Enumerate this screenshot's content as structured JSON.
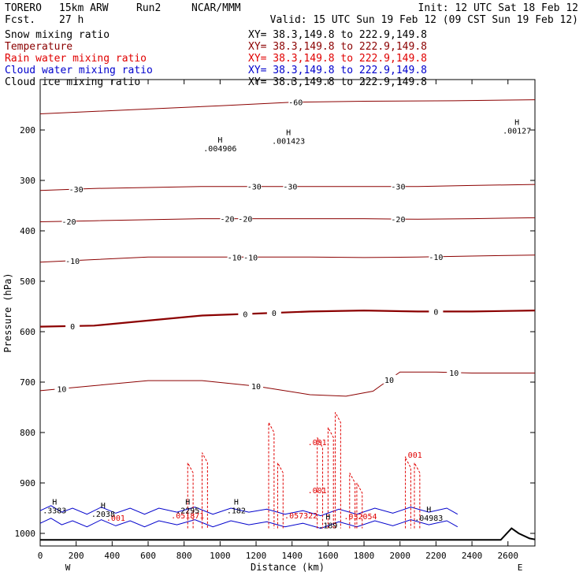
{
  "header": {
    "model": "TORERO",
    "resolution": "15km ARW",
    "run": "Run2",
    "org": "NCAR/MMM",
    "init": "Init: 12 UTC Sat 18 Feb 12",
    "fcst": "Fcst.",
    "fcst_hours": "27 h",
    "valid": "Valid: 15 UTC Sun 19 Feb 12 (09 CST Sun 19 Feb 12)"
  },
  "legend": [
    {
      "name": "Snow mixing ratio",
      "xy": "XY=  38.3,149.8 to 222.9,149.8",
      "color": "#000000"
    },
    {
      "name": "Temperature",
      "xy": "XY=  38.3,149.8 to 222.9,149.8",
      "color": "#8b0000"
    },
    {
      "name": "Rain water mixing ratio",
      "xy": "XY=  38.3,149.8 to 222.9,149.8",
      "color": "#e00000"
    },
    {
      "name": "Cloud water mixing ratio",
      "xy": "XY=  38.3,149.8 to 222.9,149.8",
      "color": "#0000cc"
    },
    {
      "name": "Cloud ice mixing ratio",
      "xy": "XY=  38.3,149.8 to 222.9,149.8",
      "color": "#000000"
    }
  ],
  "colors": {
    "temperature": "#8b0000",
    "rain": "#e00000",
    "cloud_water": "#0000cc",
    "terrain": "#000000"
  },
  "chart_data": {
    "type": "line",
    "xlabel": "Distance (km)",
    "ylabel": "Pressure (hPa)",
    "xlim": [
      0,
      2750
    ],
    "ylim": [
      1025,
      100
    ],
    "x_ticks": [
      0,
      200,
      400,
      600,
      800,
      1000,
      1200,
      1400,
      1600,
      1800,
      2000,
      2200,
      2400,
      2600
    ],
    "y_ticks": [
      200,
      300,
      400,
      500,
      600,
      700,
      800,
      900,
      1000
    ],
    "x_end_labels": {
      "left": "W",
      "right": "E"
    },
    "temperature_contours": [
      {
        "level": 10,
        "points": [
          [
            0,
            717
          ],
          [
            300,
            707
          ],
          [
            600,
            697
          ],
          [
            900,
            697
          ],
          [
            1200,
            708
          ],
          [
            1500,
            725
          ],
          [
            1700,
            728
          ],
          [
            1850,
            718
          ],
          [
            1920,
            700
          ],
          [
            2000,
            680
          ],
          [
            2200,
            680
          ],
          [
            2400,
            682
          ],
          [
            2750,
            682
          ]
        ],
        "labels": [
          {
            "x": 120,
            "text": "10"
          },
          {
            "x": 1200,
            "text": "10"
          },
          {
            "x": 1940,
            "text": "10"
          },
          {
            "x": 2300,
            "text": "10"
          }
        ]
      },
      {
        "level": 0,
        "points": [
          [
            0,
            590
          ],
          [
            300,
            588
          ],
          [
            600,
            578
          ],
          [
            900,
            568
          ],
          [
            1200,
            564
          ],
          [
            1500,
            560
          ],
          [
            1800,
            558
          ],
          [
            2100,
            560
          ],
          [
            2400,
            560
          ],
          [
            2750,
            558
          ]
        ],
        "labels": [
          {
            "x": 180,
            "text": "0"
          },
          {
            "x": 1140,
            "text": "0"
          },
          {
            "x": 1300,
            "text": "0"
          },
          {
            "x": 2200,
            "text": "0"
          }
        ]
      },
      {
        "level": -10,
        "points": [
          [
            0,
            462
          ],
          [
            300,
            457
          ],
          [
            600,
            452
          ],
          [
            900,
            452
          ],
          [
            1200,
            452
          ],
          [
            1500,
            452
          ],
          [
            1800,
            453
          ],
          [
            2100,
            452
          ],
          [
            2400,
            450
          ],
          [
            2750,
            448
          ]
        ],
        "labels": [
          {
            "x": 180,
            "text": "-10"
          },
          {
            "x": 1080,
            "text": "-10"
          },
          {
            "x": 1170,
            "text": "-10"
          },
          {
            "x": 2200,
            "text": "-10"
          }
        ]
      },
      {
        "level": -20,
        "points": [
          [
            0,
            382
          ],
          [
            300,
            380
          ],
          [
            600,
            378
          ],
          [
            900,
            376
          ],
          [
            1200,
            376
          ],
          [
            1500,
            376
          ],
          [
            1800,
            376
          ],
          [
            2100,
            377
          ],
          [
            2400,
            376
          ],
          [
            2750,
            374
          ]
        ],
        "labels": [
          {
            "x": 160,
            "text": "-20"
          },
          {
            "x": 1040,
            "text": "-20"
          },
          {
            "x": 1140,
            "text": "-20"
          },
          {
            "x": 1990,
            "text": "-20"
          }
        ]
      },
      {
        "level": -30,
        "points": [
          [
            0,
            320
          ],
          [
            300,
            316
          ],
          [
            600,
            314
          ],
          [
            900,
            312
          ],
          [
            1200,
            312
          ],
          [
            1500,
            312
          ],
          [
            1800,
            312
          ],
          [
            2100,
            312
          ],
          [
            2400,
            310
          ],
          [
            2750,
            308
          ]
        ],
        "labels": [
          {
            "x": 200,
            "text": "-30"
          },
          {
            "x": 1190,
            "text": "-30"
          },
          {
            "x": 1390,
            "text": "-30"
          },
          {
            "x": 1990,
            "text": "-30"
          }
        ]
      },
      {
        "level": -60,
        "points": [
          [
            0,
            168
          ],
          [
            500,
            160
          ],
          [
            1000,
            152
          ],
          [
            1400,
            145
          ],
          [
            1800,
            143
          ],
          [
            2300,
            142
          ],
          [
            2750,
            140
          ]
        ],
        "labels": [
          {
            "x": 1420,
            "text": "-60"
          }
        ]
      }
    ],
    "highs": [
      {
        "x": 1000,
        "y": 225,
        "label": ".004906"
      },
      {
        "x": 1380,
        "y": 210,
        "label": ".001423"
      },
      {
        "x": 2650,
        "y": 190,
        "label": ".00127"
      },
      {
        "x": 80,
        "y": 943,
        "label": ".3383"
      },
      {
        "x": 350,
        "y": 950,
        "label": ".2038"
      },
      {
        "x": 820,
        "y": 943,
        "label": ".2295"
      },
      {
        "x": 1090,
        "y": 943,
        "label": ".182"
      },
      {
        "x": 1600,
        "y": 973,
        "label": ".189"
      },
      {
        "x": 2160,
        "y": 958,
        "label": ".04983"
      }
    ],
    "rain_labels": [
      {
        "x": 420,
        "y": 975,
        "text": ".001"
      },
      {
        "x": 1540,
        "y": 920,
        "text": ".001"
      },
      {
        "x": 1540,
        "y": 825,
        "text": ".001"
      },
      {
        "x": 2070,
        "y": 850,
        "text": ".001"
      },
      {
        "x": 1450,
        "y": 970,
        "text": ".057322"
      },
      {
        "x": 1780,
        "y": 972,
        "text": ".032054"
      },
      {
        "x": 820,
        "y": 970,
        "text": ".051871"
      }
    ],
    "terrain": [
      [
        0,
        1013
      ],
      [
        2480,
        1013
      ],
      [
        2560,
        1013
      ],
      [
        2620,
        990
      ],
      [
        2660,
        1000
      ],
      [
        2720,
        1010
      ],
      [
        2750,
        1012
      ]
    ]
  }
}
